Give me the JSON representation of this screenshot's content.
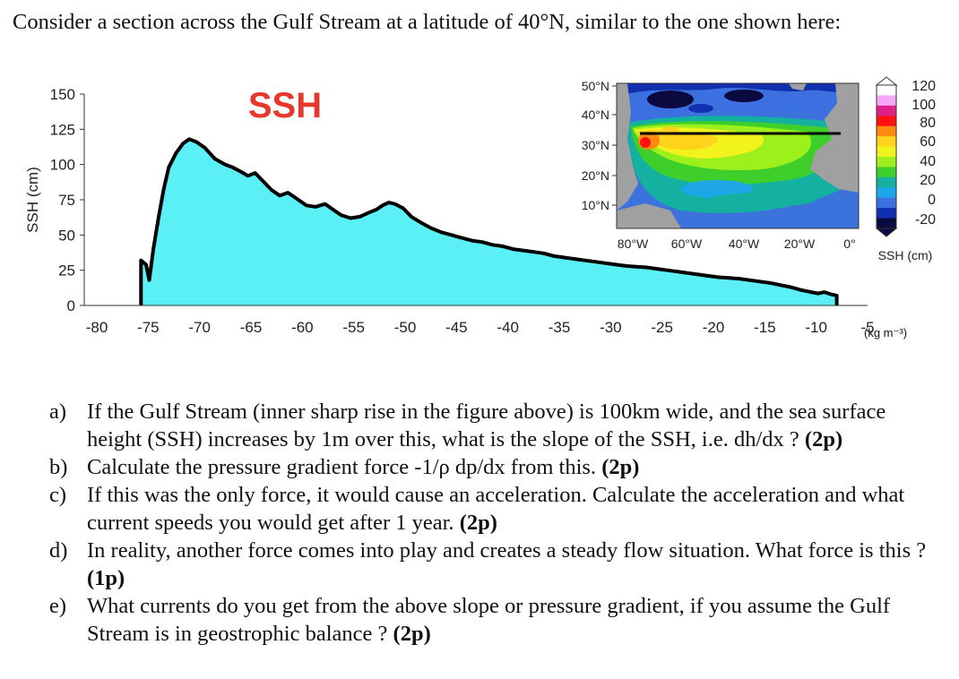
{
  "intro": "Consider a section across the Gulf Stream at a latitude of 40°N, similar to the one shown here:",
  "chart_data": [
    {
      "type": "area",
      "title": "SSH",
      "title_color": "#e8382b",
      "fill_color": "#5af0f5",
      "ylabel": "SSH (cm)",
      "ylim": [
        0,
        150
      ],
      "yticks": [
        "150",
        "125",
        "100",
        "75",
        "50",
        "25",
        "0"
      ],
      "xlim": [
        -80,
        -5
      ],
      "xticks": [
        "-80",
        "-75",
        "-70",
        "-65",
        "-60",
        "-55",
        "-50",
        "-45",
        "-40",
        "-35",
        "-30",
        "-25",
        "-20",
        "-15",
        "-10",
        "-5"
      ],
      "x": [
        -75.7,
        -75.2,
        -74.9,
        -74.5,
        -74,
        -73.5,
        -73,
        -72.3,
        -71.6,
        -71,
        -70.3,
        -69.5,
        -68.5,
        -67.5,
        -66.8,
        -66,
        -65.3,
        -64.6,
        -63.8,
        -63,
        -62.2,
        -61.4,
        -60.6,
        -59.6,
        -58.7,
        -57.8,
        -57,
        -56.2,
        -55.3,
        -54.4,
        -53.5,
        -52.8,
        -52.2,
        -51.6,
        -51,
        -50.2,
        -49.4,
        -48.5,
        -47.5,
        -46.5,
        -45.5,
        -44.5,
        -43.5,
        -42.5,
        -41.5,
        -40.5,
        -39.5,
        -38.5,
        -37.5,
        -36.5,
        -35.5,
        -34.5,
        -33.5,
        -32.5,
        -31.5,
        -30.5,
        -29.5,
        -28.5,
        -27.5,
        -26.5,
        -25.5,
        -24.5,
        -23.5,
        -22.5,
        -21.5,
        -20.5,
        -19.5,
        -18.5,
        -17.5,
        -16.5,
        -15.5,
        -14.5,
        -13.5,
        -12.5,
        -11.5,
        -10.5,
        -9.8,
        -9.2,
        -8.6,
        -8
      ],
      "y": [
        32,
        29,
        18,
        40,
        62,
        82,
        98,
        108,
        115,
        118,
        116,
        112,
        104,
        100,
        98,
        95,
        92,
        94,
        88,
        82,
        78,
        80,
        76,
        71,
        70,
        72,
        68,
        64,
        62,
        63,
        66,
        68,
        71,
        73,
        72,
        69,
        63,
        59,
        55,
        52,
        50,
        48,
        46,
        45,
        43,
        42,
        40,
        39,
        38,
        37,
        35,
        34,
        33,
        32,
        31,
        30,
        29,
        28,
        27.5,
        27,
        26,
        25,
        24,
        23,
        22,
        21,
        20,
        19.5,
        19,
        18,
        17,
        16,
        14.5,
        13,
        11,
        9.5,
        8.5,
        9.5,
        8,
        7
      ]
    },
    {
      "type": "heatmap",
      "title": "",
      "lat_labels": [
        "50°N",
        "40°N",
        "30°N",
        "20°N",
        "10°N"
      ],
      "lon_labels": [
        "80°W",
        "60°W",
        "40°W",
        "20°W",
        "0°"
      ],
      "colorbar_ticks": [
        "120",
        "100",
        "80",
        "60",
        "40",
        "20",
        "0",
        "-20"
      ],
      "colorbar_label": "SSH (cm)",
      "section_line_latitude": "40°N",
      "colors": [
        "#ffffff",
        "#f5a8f5",
        "#e0208a",
        "#ff1010",
        "#ff8a10",
        "#ffd21c",
        "#f2f21c",
        "#9ef01c",
        "#3ecf2a",
        "#14b0a0",
        "#1ea7e8",
        "#3c70e0",
        "#1030b0",
        "#0a0a40"
      ]
    }
  ],
  "units_label": "(kg m⁻³)",
  "questions": [
    {
      "mark": "a)",
      "text": "If the Gulf Stream (inner sharp rise in the figure above) is 100km wide, and the sea surface height (SSH) increases by 1m over this, what is the slope of the SSH, i.e. dh/dx ? ",
      "points": "(2p)"
    },
    {
      "mark": "b)",
      "text": "Calculate the pressure gradient force -1/ρ dp/dx from this. ",
      "points": "(2p)"
    },
    {
      "mark": "c)",
      "text": "If this was the only force, it would cause an acceleration. Calculate the acceleration and what current speeds you would get after 1 year. ",
      "points": "(2p)"
    },
    {
      "mark": "d)",
      "text": "In reality, another force comes into play and creates a steady flow situation. What force is this ? ",
      "points": "(1p)"
    },
    {
      "mark": "e)",
      "text": "What currents do you get from the above slope or pressure gradient, if you assume the Gulf Stream is in geostrophic balance ? ",
      "points": "(2p)"
    }
  ]
}
